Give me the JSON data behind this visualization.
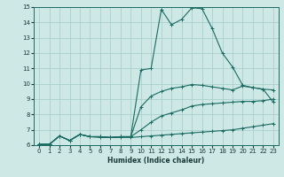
{
  "title": "",
  "xlabel": "Humidex (Indice chaleur)",
  "xlim": [
    -0.5,
    23.5
  ],
  "ylim": [
    6,
    15
  ],
  "xticks": [
    0,
    1,
    2,
    3,
    4,
    5,
    6,
    7,
    8,
    9,
    10,
    11,
    12,
    13,
    14,
    15,
    16,
    17,
    18,
    19,
    20,
    21,
    22,
    23
  ],
  "yticks": [
    6,
    7,
    8,
    9,
    10,
    11,
    12,
    13,
    14,
    15
  ],
  "bg_color": "#cde8e5",
  "grid_color": "#aacfcc",
  "line_color": "#1a6b62",
  "lines": [
    {
      "x": [
        0,
        1,
        2,
        3,
        4,
        5,
        6,
        7,
        8,
        9,
        10,
        11,
        12,
        13,
        14,
        15,
        16,
        17,
        18,
        19,
        20,
        21,
        22,
        23
      ],
      "y": [
        6.05,
        6.05,
        6.6,
        6.3,
        6.7,
        6.55,
        6.55,
        6.5,
        6.55,
        6.55,
        10.9,
        11.0,
        14.85,
        13.85,
        14.2,
        14.95,
        14.9,
        13.6,
        12.0,
        11.1,
        9.9,
        9.75,
        9.65,
        8.8
      ]
    },
    {
      "x": [
        0,
        1,
        2,
        3,
        4,
        5,
        6,
        7,
        8,
        9,
        10,
        11,
        12,
        13,
        14,
        15,
        16,
        17,
        18,
        19,
        20,
        21,
        22,
        23
      ],
      "y": [
        6.05,
        6.05,
        6.6,
        6.3,
        6.7,
        6.55,
        6.55,
        6.5,
        6.55,
        6.55,
        8.5,
        9.2,
        9.5,
        9.7,
        9.8,
        9.95,
        9.9,
        9.8,
        9.7,
        9.6,
        9.85,
        9.75,
        9.65,
        9.6
      ]
    },
    {
      "x": [
        0,
        1,
        2,
        3,
        4,
        5,
        6,
        7,
        8,
        9,
        10,
        11,
        12,
        13,
        14,
        15,
        16,
        17,
        18,
        19,
        20,
        21,
        22,
        23
      ],
      "y": [
        6.05,
        6.05,
        6.6,
        6.3,
        6.7,
        6.55,
        6.55,
        6.5,
        6.55,
        6.55,
        7.0,
        7.5,
        7.9,
        8.1,
        8.3,
        8.55,
        8.65,
        8.7,
        8.75,
        8.8,
        8.85,
        8.85,
        8.9,
        9.0
      ]
    },
    {
      "x": [
        0,
        1,
        2,
        3,
        4,
        5,
        6,
        7,
        8,
        9,
        10,
        11,
        12,
        13,
        14,
        15,
        16,
        17,
        18,
        19,
        20,
        21,
        22,
        23
      ],
      "y": [
        6.05,
        6.05,
        6.6,
        6.3,
        6.7,
        6.55,
        6.5,
        6.5,
        6.5,
        6.5,
        6.55,
        6.6,
        6.65,
        6.7,
        6.75,
        6.8,
        6.85,
        6.9,
        6.95,
        7.0,
        7.1,
        7.2,
        7.3,
        7.4
      ]
    }
  ]
}
